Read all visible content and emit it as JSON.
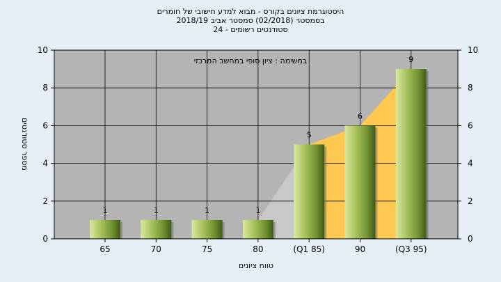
{
  "chart_data": {
    "type": "bar",
    "title_lines": [
      "היסטוגרמת ציונים בקורס - מבוא למדע חישובי של חומרים",
      "בסמסטר  (02/2018)  סמסטר אביב 2018/19",
      "סטודנטים רשומים - 24"
    ],
    "annotation": "במשימה : ציון סופי במחשב המרכזי",
    "categories": [
      "65",
      "70",
      "75",
      "80",
      "(Q1 85)",
      "90",
      "(Q3 95)"
    ],
    "values": [
      1,
      1,
      1,
      1,
      5,
      6,
      9
    ],
    "data_labels": [
      "1",
      "1",
      "1",
      "1",
      "5",
      "6",
      "9"
    ],
    "xlabel": "טווח ציונים",
    "ylabel": "מספר סטודנטים",
    "ylim": [
      0,
      10
    ],
    "yticks": [
      "0",
      "2",
      "4",
      "6",
      "8",
      "10"
    ],
    "y2ticks": [
      "0",
      "2",
      "4",
      "6",
      "8",
      "10"
    ],
    "grid": true,
    "colors": {
      "plot_bg": "#b4b4b4",
      "bar_light": "#d8e8a0",
      "bar_mid": "#8fb04a",
      "bar_dark": "#3e5a16",
      "quartile_area": "#ffc850",
      "grid": "#000000"
    }
  }
}
